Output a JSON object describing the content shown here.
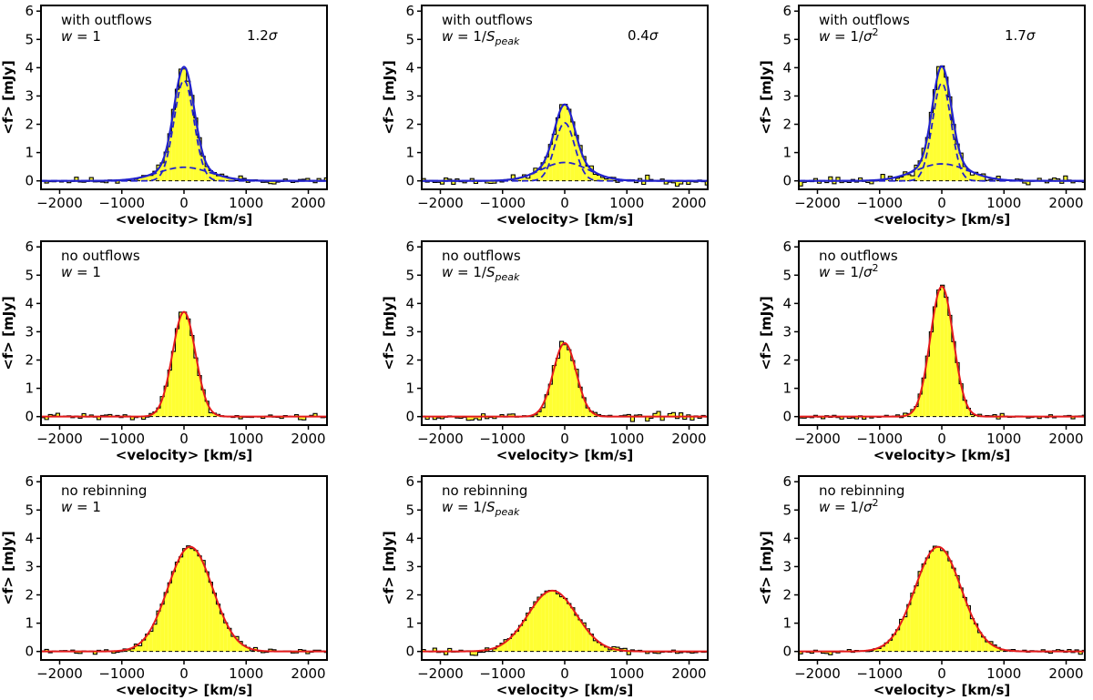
{
  "colors": {
    "histogram_fill": "#ffff33",
    "histogram_edge": "#000000",
    "fit_total": "#e41a1c",
    "outflow_model": "#2222cc",
    "baseline": "#000000"
  },
  "shared_axes": {
    "xlabel": "<velocity> [km/s]",
    "ylabel": "<f> [mJy]",
    "xlim": [
      -2300,
      2300
    ],
    "ylim": [
      -0.3,
      6.2
    ],
    "xticks": [
      -2000,
      -1000,
      0,
      1000,
      2000
    ],
    "xtick_labels": [
      "−2000",
      "−1000",
      "0",
      "1000",
      "2000"
    ],
    "yticks": [
      0,
      1,
      2,
      3,
      4,
      5,
      6
    ],
    "ytick_labels": [
      "0",
      "1",
      "2",
      "3",
      "4",
      "5",
      "6"
    ],
    "grid": false
  },
  "chart_data": [
    {
      "type": "bar",
      "row": 0,
      "col": 0,
      "line1": "with outflows",
      "weight": "w = 1",
      "significance": "1.2σ",
      "has_outflow": true,
      "narrow": {
        "amp": 3.55,
        "center": 0,
        "sigma": 160
      },
      "broad": {
        "amp": 0.48,
        "center": 0,
        "sigma": 420
      },
      "bin_width": 60,
      "noise_amp": 0.08,
      "seed": 11
    },
    {
      "type": "bar",
      "row": 0,
      "col": 1,
      "line1": "with outflows",
      "weight": "w = 1/S_peak",
      "significance": "0.4σ",
      "has_outflow": true,
      "narrow": {
        "amp": 2.05,
        "center": 0,
        "sigma": 160
      },
      "broad": {
        "amp": 0.65,
        "center": 0,
        "sigma": 380
      },
      "bin_width": 60,
      "noise_amp": 0.09,
      "seed": 23
    },
    {
      "type": "bar",
      "row": 0,
      "col": 2,
      "line1": "with outflows",
      "weight": "w = 1/σ²",
      "significance": "1.7σ",
      "has_outflow": true,
      "narrow": {
        "amp": 3.45,
        "center": 0,
        "sigma": 150
      },
      "broad": {
        "amp": 0.6,
        "center": 0,
        "sigma": 420
      },
      "bin_width": 60,
      "noise_amp": 0.1,
      "seed": 37
    },
    {
      "type": "bar",
      "row": 1,
      "col": 0,
      "line1": "no outflows",
      "weight": "w = 1",
      "significance": "",
      "has_outflow": false,
      "narrow": {
        "amp": 3.7,
        "center": 0,
        "sigma": 185
      },
      "broad": null,
      "bin_width": 60,
      "noise_amp": 0.07,
      "seed": 41
    },
    {
      "type": "bar",
      "row": 1,
      "col": 1,
      "line1": "no outflows",
      "weight": "w = 1/S_peak",
      "significance": "",
      "has_outflow": false,
      "narrow": {
        "amp": 2.6,
        "center": 0,
        "sigma": 185
      },
      "broad": null,
      "bin_width": 60,
      "noise_amp": 0.09,
      "seed": 53
    },
    {
      "type": "bar",
      "row": 1,
      "col": 2,
      "line1": "no outflows",
      "weight": "w = 1/σ²",
      "significance": "",
      "has_outflow": false,
      "narrow": {
        "amp": 4.6,
        "center": 0,
        "sigma": 185
      },
      "broad": null,
      "bin_width": 60,
      "noise_amp": 0.05,
      "seed": 67
    },
    {
      "type": "bar",
      "row": 2,
      "col": 0,
      "line1": "no rebinning",
      "weight": "w = 1",
      "significance": "",
      "has_outflow": false,
      "narrow": {
        "amp": 3.7,
        "center": 100,
        "sigma": 360
      },
      "broad": null,
      "bin_width": 60,
      "noise_amp": 0.06,
      "seed": 71
    },
    {
      "type": "bar",
      "row": 2,
      "col": 1,
      "line1": "no rebinning",
      "weight": "w = 1/S_peak",
      "significance": "",
      "has_outflow": false,
      "narrow": {
        "amp": 2.15,
        "center": -200,
        "sigma": 390
      },
      "broad": null,
      "bin_width": 60,
      "noise_amp": 0.07,
      "seed": 83
    },
    {
      "type": "bar",
      "row": 2,
      "col": 2,
      "line1": "no rebinning",
      "weight": "w = 1/σ²",
      "significance": "",
      "has_outflow": false,
      "narrow": {
        "amp": 3.7,
        "center": -60,
        "sigma": 370
      },
      "broad": null,
      "bin_width": 60,
      "noise_amp": 0.05,
      "seed": 97
    }
  ]
}
